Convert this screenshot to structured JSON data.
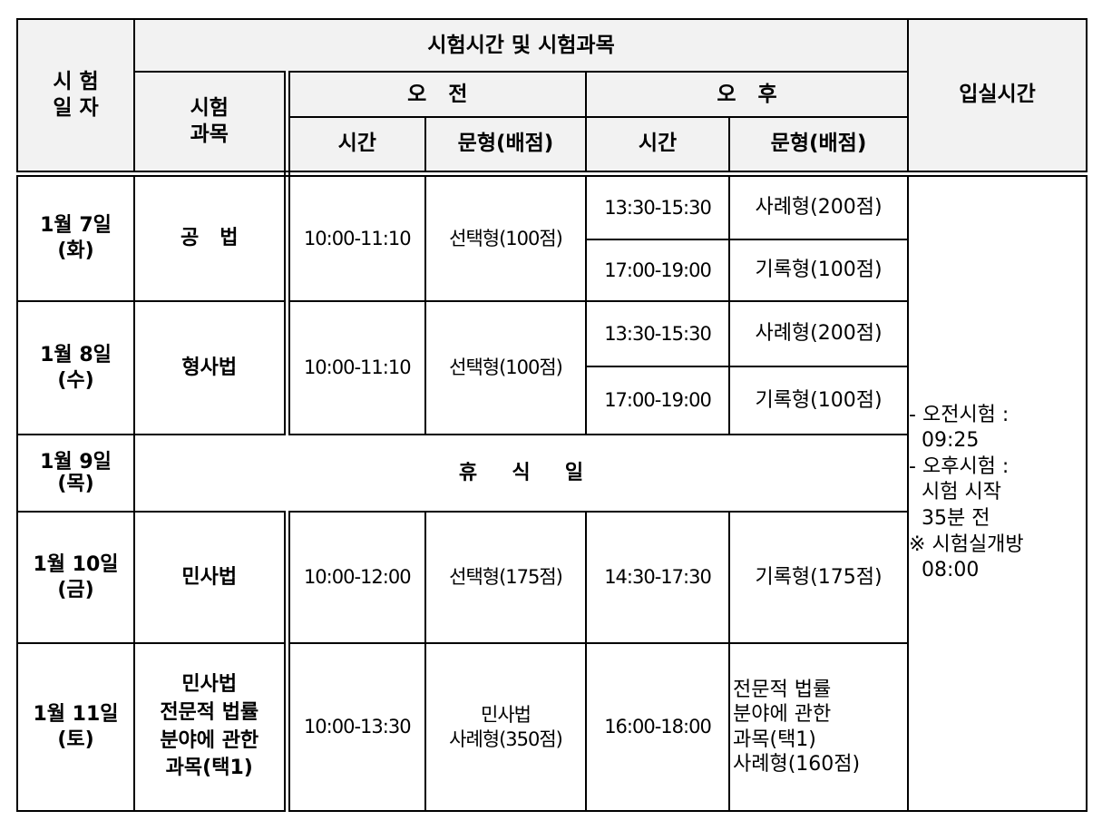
{
  "header": {
    "date_col": "시 험\n일 자",
    "schedule_group": "시험시간 및 시험과목",
    "subject_col": "시험\n과목",
    "morning": "오   전",
    "afternoon": "오   후",
    "entry_col": "입실시간",
    "time": "시간",
    "type_score": "문형(배점)"
  },
  "rows": [
    {
      "date": "1월 7일\n(화)",
      "subject": "공   법",
      "am_time": "10:00-11:10",
      "am_type": "선택형(100점)",
      "pm": [
        {
          "time": "13:30-15:30",
          "type": "사례형(200점)"
        },
        {
          "time": "17:00-19:00",
          "type": "기록형(100점)"
        }
      ]
    },
    {
      "date": "1월 8일\n(수)",
      "subject": "형사법",
      "am_time": "10:00-11:10",
      "am_type": "선택형(100점)",
      "pm": [
        {
          "time": "13:30-15:30",
          "type": "사례형(200점)"
        },
        {
          "time": "17:00-19:00",
          "type": "기록형(100점)"
        }
      ]
    },
    {
      "date": "1월 9일\n(목)",
      "rest": "휴     식     일"
    },
    {
      "date": "1월 10일\n(금)",
      "subject": "민사법",
      "am_time": "10:00-12:00",
      "am_type": "선택형(175점)",
      "pm": [
        {
          "time": "14:30-17:30",
          "type": "기록형(175점)"
        }
      ]
    },
    {
      "date": "1월 11일\n(토)",
      "subject": "민사법\n전문적 법률\n분야에 관한\n과목(택1)",
      "am_time": "10:00-13:30",
      "am_type": "민사법\n사례형(350점)",
      "pm": [
        {
          "time": "16:00-18:00",
          "type": "전문적 법률\n분야에 관한\n과목(택1)\n사례형(160점)"
        }
      ]
    }
  ],
  "entry_notes": [
    "- 오전시험 :",
    "  09:25",
    "- 오후시험 :",
    "  시험 시작",
    "  35분 전",
    "※ 시험실개방",
    "  08:00"
  ]
}
